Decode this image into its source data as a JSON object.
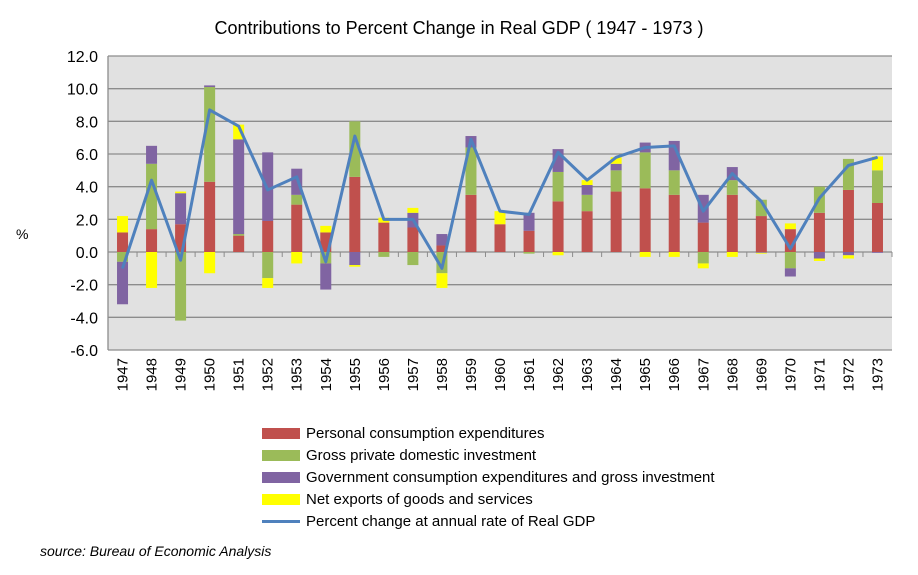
{
  "chart_data": {
    "type": "bar",
    "subtype": "stacked bar with line",
    "title": "Contributions to Percent Change in Real GDP ( 1947 - 1973 )",
    "ylabel": "%",
    "xlabel": "",
    "ylim": [
      -6,
      12
    ],
    "yticks": [
      "-6.0",
      "-4.0",
      "-2.0",
      "0.0",
      "2.0",
      "4.0",
      "6.0",
      "8.0",
      "10.0",
      "12.0"
    ],
    "grid": true,
    "legend_position": "bottom",
    "categories": [
      "1947",
      "1948",
      "1949",
      "1950",
      "1951",
      "1952",
      "1953",
      "1954",
      "1955",
      "1956",
      "1957",
      "1958",
      "1959",
      "1960",
      "1961",
      "1962",
      "1963",
      "1964",
      "1965",
      "1966",
      "1967",
      "1968",
      "1969",
      "1970",
      "1971",
      "1972",
      "1973"
    ],
    "series": [
      {
        "name": "Personal consumption expenditures",
        "type": "bar",
        "color": "#C0504D",
        "values": [
          1.2,
          1.4,
          1.7,
          4.3,
          1.0,
          1.9,
          2.9,
          1.2,
          4.6,
          1.8,
          1.5,
          0.4,
          3.5,
          1.7,
          1.3,
          3.1,
          2.5,
          3.7,
          3.9,
          3.5,
          1.8,
          3.5,
          2.2,
          1.4,
          2.4,
          3.8,
          3.0
        ]
      },
      {
        "name": "Gross private domestic investment",
        "type": "bar",
        "color": "#9BBB59",
        "values": [
          -0.6,
          4.0,
          -4.2,
          5.8,
          0.1,
          -1.6,
          0.6,
          -0.7,
          3.4,
          -0.3,
          -0.8,
          -1.3,
          2.9,
          0.0,
          -0.1,
          1.8,
          1.0,
          1.3,
          2.2,
          1.5,
          -0.7,
          0.9,
          1.0,
          -1.0,
          1.6,
          1.9,
          2.0
        ]
      },
      {
        "name": "Government consumption expenditures and gross investment",
        "type": "bar",
        "color": "#8064A2",
        "values": [
          -2.6,
          1.1,
          1.9,
          0.1,
          5.8,
          4.2,
          1.6,
          -1.6,
          -0.8,
          0.0,
          0.9,
          0.7,
          0.7,
          0.0,
          1.1,
          1.4,
          0.6,
          0.4,
          0.6,
          1.8,
          1.7,
          0.8,
          -0.05,
          -0.5,
          -0.4,
          -0.2,
          -0.05
        ]
      },
      {
        "name": "Net exports of goods and services",
        "type": "bar",
        "color": "#FFFF00",
        "values": [
          1.0,
          -2.2,
          0.1,
          -1.3,
          0.9,
          -0.6,
          -0.7,
          0.4,
          -0.1,
          0.3,
          0.3,
          -0.9,
          0.0,
          0.8,
          0.0,
          -0.2,
          0.3,
          0.4,
          -0.3,
          -0.3,
          -0.3,
          -0.3,
          -0.05,
          0.35,
          -0.15,
          -0.2,
          0.85
        ]
      },
      {
        "name": "Percent change at annual rate of Real GDP",
        "type": "line",
        "color": "#4F81BD",
        "values": [
          -1.0,
          4.4,
          -0.5,
          8.7,
          7.7,
          3.8,
          4.6,
          -0.6,
          7.1,
          2.0,
          2.0,
          -1.0,
          6.9,
          2.5,
          2.3,
          6.1,
          4.4,
          5.8,
          6.4,
          6.5,
          2.5,
          4.8,
          3.1,
          0.2,
          3.3,
          5.3,
          5.8
        ]
      }
    ]
  },
  "source": "source: Bureau of Economic Analysis"
}
